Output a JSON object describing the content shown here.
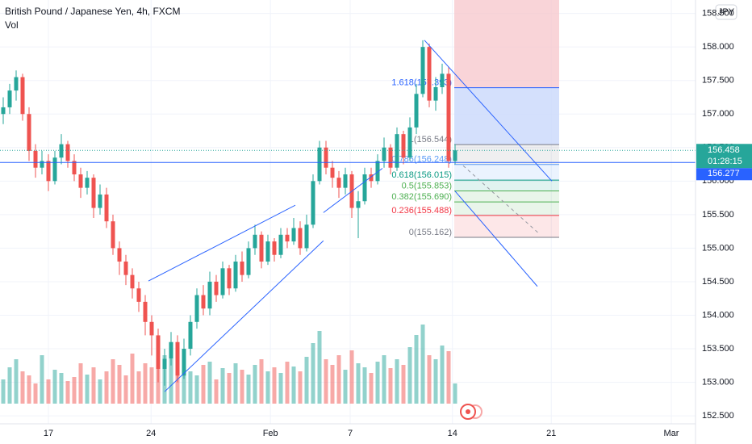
{
  "header": {
    "title": "British Pound / Japanese Yen, 4h, FXCM",
    "indicator": "Vol",
    "currency": "JPY"
  },
  "chart_data": {
    "type": "candlestick",
    "xlim": [
      -0.5,
      107.25
    ],
    "ylim": [
      152.08,
      158.7
    ],
    "xticks": [
      {
        "value": 7.0,
        "label": "17"
      },
      {
        "value": 22.9,
        "label": "24"
      },
      {
        "value": 41.4,
        "label": "Feb"
      },
      {
        "value": 53.75,
        "label": "7"
      },
      {
        "value": 69.6,
        "label": "14"
      },
      {
        "value": 84.9,
        "label": "21"
      },
      {
        "value": 103.5,
        "label": "Mar"
      }
    ],
    "yticks": [
      {
        "value": 152.5,
        "label": "152.500"
      },
      {
        "value": 153,
        "label": "153.000"
      },
      {
        "value": 153.5,
        "label": "153.500"
      },
      {
        "value": 154,
        "label": "154.000"
      },
      {
        "value": 154.5,
        "label": "154.500"
      },
      {
        "value": 155,
        "label": "155.000"
      },
      {
        "value": 155.5,
        "label": "155.500"
      },
      {
        "value": 156,
        "label": "156.000"
      },
      {
        "value": 156.5,
        "label": "156.500"
      },
      {
        "value": 157,
        "label": "157.000"
      },
      {
        "value": 157.5,
        "label": "157.500"
      },
      {
        "value": 158,
        "label": "158.000"
      },
      {
        "value": 158.5,
        "label": "158.500"
      }
    ],
    "up_color": "#26a69a",
    "down_color": "#ef5350",
    "open": [
      157.0,
      157.1,
      157.35,
      157.55,
      157.0,
      156.45,
      156.2,
      156.3,
      156.0,
      156.35,
      156.55,
      156.3,
      156.1,
      155.9,
      156.05,
      155.6,
      155.8,
      155.4,
      155.0,
      154.8,
      154.6,
      154.4,
      154.2,
      153.9,
      153.7,
      153.2,
      153.35,
      153.6,
      153.1,
      153.5,
      153.9,
      154.3,
      154.1,
      154.5,
      154.3,
      154.7,
      154.4,
      154.8,
      154.6,
      155.0,
      155.2,
      154.8,
      155.1,
      154.9,
      155.2,
      155.1,
      155.3,
      155.0,
      155.35,
      156.0,
      156.5,
      156.2,
      156.05,
      155.9,
      156.1,
      155.6,
      155.7,
      156.1,
      156.0,
      156.3,
      156.5,
      156.2,
      156.7,
      156.35,
      156.8,
      157.3,
      158.0,
      157.2,
      157.4,
      157.6,
      156.3
    ],
    "high": [
      157.25,
      157.45,
      157.65,
      157.6,
      157.1,
      156.55,
      156.45,
      156.4,
      156.45,
      156.7,
      156.6,
      156.4,
      156.2,
      156.15,
      156.1,
      155.95,
      155.9,
      155.5,
      155.1,
      154.9,
      154.7,
      154.5,
      154.3,
      154.0,
      153.8,
      153.5,
      153.75,
      153.7,
      153.65,
      154.0,
      154.4,
      154.45,
      154.65,
      154.6,
      154.8,
      154.75,
      154.9,
      154.95,
      155.1,
      155.35,
      155.25,
      155.2,
      155.15,
      155.3,
      155.3,
      155.45,
      155.4,
      155.5,
      156.1,
      156.6,
      156.6,
      156.3,
      156.15,
      156.2,
      156.15,
      155.85,
      156.2,
      156.2,
      156.4,
      156.65,
      156.55,
      156.8,
      156.75,
      156.95,
      157.45,
      158.1,
      158.05,
      157.55,
      157.75,
      157.7,
      156.55
    ],
    "low": [
      156.85,
      157.0,
      157.2,
      156.9,
      156.3,
      156.05,
      156.1,
      155.85,
      155.95,
      156.25,
      156.2,
      156.0,
      155.75,
      155.8,
      155.45,
      155.5,
      155.3,
      154.9,
      154.6,
      154.45,
      154.25,
      154.05,
      153.7,
      153.4,
      153.0,
      152.95,
      153.25,
      153.0,
      153.05,
      153.4,
      153.8,
      154.0,
      154.0,
      154.2,
      154.25,
      154.3,
      154.35,
      154.5,
      154.55,
      154.9,
      154.7,
      154.75,
      154.8,
      154.85,
      155.0,
      155.05,
      154.9,
      154.95,
      155.3,
      155.95,
      156.1,
      155.9,
      155.75,
      155.8,
      155.45,
      155.15,
      155.65,
      155.9,
      155.95,
      156.2,
      156.1,
      156.15,
      156.25,
      156.3,
      156.7,
      157.25,
      157.1,
      157.05,
      157.3,
      156.2,
      156.25
    ],
    "close": [
      157.1,
      157.35,
      157.55,
      157.0,
      156.45,
      156.2,
      156.3,
      156.0,
      156.35,
      156.55,
      156.3,
      156.1,
      155.9,
      156.05,
      155.6,
      155.8,
      155.4,
      155.0,
      154.8,
      154.6,
      154.4,
      154.2,
      153.9,
      153.7,
      153.2,
      153.35,
      153.6,
      153.1,
      153.5,
      153.9,
      154.3,
      154.1,
      154.5,
      154.3,
      154.7,
      154.4,
      154.8,
      154.6,
      155.0,
      155.2,
      154.8,
      155.1,
      154.9,
      155.2,
      155.1,
      155.3,
      155.0,
      155.35,
      156.0,
      156.5,
      156.2,
      156.05,
      155.9,
      156.1,
      155.6,
      155.7,
      156.1,
      156.0,
      156.3,
      156.5,
      156.2,
      156.7,
      156.35,
      156.8,
      157.3,
      158.0,
      157.2,
      157.4,
      157.6,
      156.3,
      156.458
    ],
    "volume_ylim": [
      0,
      100
    ],
    "volume": [
      30,
      45,
      55,
      40,
      35,
      25,
      60,
      30,
      42,
      38,
      28,
      33,
      50,
      36,
      45,
      30,
      40,
      55,
      48,
      35,
      62,
      40,
      50,
      45,
      70,
      60,
      55,
      50,
      45,
      40,
      35,
      48,
      52,
      30,
      44,
      38,
      50,
      42,
      36,
      48,
      55,
      40,
      45,
      38,
      52,
      46,
      40,
      58,
      75,
      90,
      55,
      48,
      60,
      42,
      66,
      50,
      45,
      38,
      52,
      60,
      44,
      55,
      48,
      70,
      85,
      98,
      60,
      55,
      72,
      65,
      25
    ],
    "price_line": {
      "value": 156.458,
      "label": "156.458",
      "countdown": "01:28:15",
      "color": "#26a69a"
    },
    "hline": {
      "value": 156.277,
      "label": "156.277",
      "color": "#2962ff"
    },
    "risk_zone": {
      "top": 158.7,
      "target": 157.393,
      "entry": 156.544,
      "risk_color": "#f7c6cb",
      "reward_color": "#c9d8fb"
    },
    "fib_levels": [
      {
        "label": "1.618(157.393)",
        "value": 157.393,
        "color": "#2962ff"
      },
      {
        "label": "1(156.544)",
        "value": 156.544,
        "color": "#787b86"
      },
      {
        "label": "0.786(156.248)",
        "value": 156.248,
        "color": "#5b9cf6"
      },
      {
        "label": "0.618(156.015)",
        "value": 156.015,
        "color": "#089981"
      },
      {
        "label": "0.5(155.853)",
        "value": 155.853,
        "color": "#4caf50"
      },
      {
        "label": "0.382(155.690)",
        "value": 155.69,
        "color": "#4caf50"
      },
      {
        "label": "0.236(155.488)",
        "value": 155.488,
        "color": "#f23645"
      },
      {
        "label": "0(155.162)",
        "value": 155.162,
        "color": "#787b86"
      }
    ],
    "trend_lines": [
      {
        "x": [
          25,
          49.6
        ],
        "y": [
          152.86,
          155.11
        ],
        "color": "#2962ff"
      },
      {
        "x": [
          22.5,
          45.25
        ],
        "y": [
          154.51,
          155.64
        ],
        "color": "#2962ff"
      },
      {
        "x": [
          49.6,
          58.75
        ],
        "y": [
          155.53,
          156.19
        ],
        "color": "#2962ff"
      },
      {
        "x": [
          65.25,
          85
        ],
        "y": [
          158.1,
          156.0
        ],
        "color": "#2962ff"
      },
      {
        "x": [
          70,
          82.75
        ],
        "y": [
          155.85,
          154.43
        ],
        "color": "#2962ff"
      },
      {
        "x": [
          71.25,
          83.1
        ],
        "y": [
          156.23,
          155.21
        ],
        "color": "#9598a1",
        "dashed": true
      }
    ]
  }
}
